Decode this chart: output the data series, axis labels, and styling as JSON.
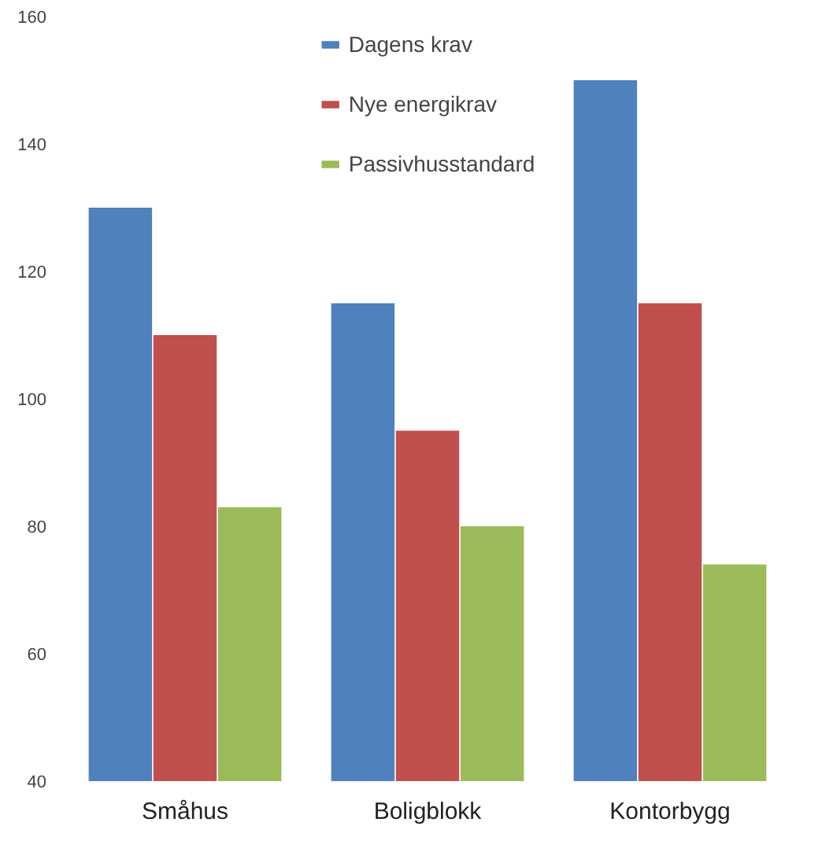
{
  "chart_data": {
    "type": "bar",
    "categories": [
      "Småhus",
      "Boligblokk",
      "Kontorbygg"
    ],
    "series": [
      {
        "name": "Dagens krav",
        "color": "#4f81bd",
        "values": [
          130,
          115,
          150
        ]
      },
      {
        "name": "Nye energikrav",
        "color": "#c0504d",
        "values": [
          110,
          95,
          115
        ]
      },
      {
        "name": "Passivhusstandard",
        "color": "#9bbb59",
        "values": [
          83,
          80,
          74
        ]
      }
    ],
    "ylim": [
      40,
      160
    ],
    "yticks": [
      40,
      60,
      80,
      100,
      120,
      140,
      160
    ],
    "grid": false,
    "legend": "top"
  }
}
